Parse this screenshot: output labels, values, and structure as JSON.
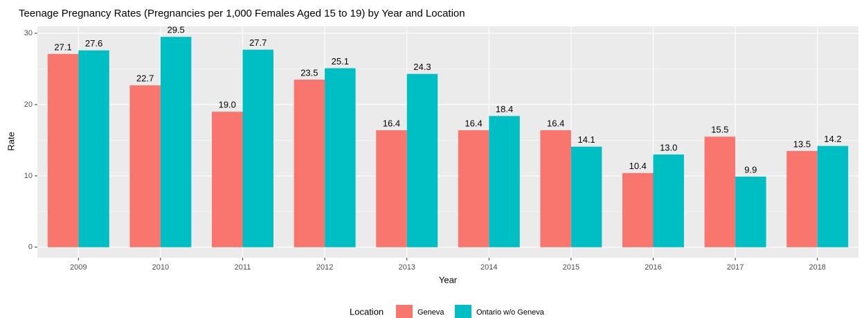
{
  "chart_data": {
    "type": "bar",
    "title": "Teenage Pregnancy Rates (Pregnancies per 1,000 Females Aged 15 to 19) by Year and Location",
    "x_label": "Year",
    "y_label": "Rate",
    "legend_title": "Location",
    "categories": [
      "2009",
      "2010",
      "2011",
      "2012",
      "2013",
      "2014",
      "2015",
      "2016",
      "2017",
      "2018"
    ],
    "series": [
      {
        "name": "Geneva",
        "color": "#f8766d",
        "values": [
          27.1,
          22.7,
          19.0,
          23.5,
          16.4,
          16.4,
          16.4,
          10.4,
          15.5,
          13.5
        ],
        "value_labels": [
          "27.1",
          "22.7",
          "19.0",
          "23.5",
          "16.4",
          "16.4",
          "16.4",
          "10.4",
          "15.5",
          "13.5"
        ]
      },
      {
        "name": "Ontario w/o Geneva",
        "color": "#00bfc4",
        "values": [
          27.6,
          29.5,
          27.7,
          25.1,
          24.3,
          18.4,
          14.1,
          13.0,
          9.9,
          14.2
        ],
        "value_labels": [
          "27.6",
          "29.5",
          "27.7",
          "25.1",
          "24.3",
          "18.4",
          "14.1",
          "13.0",
          "9.9",
          "14.2"
        ]
      }
    ],
    "ylim": [
      -1.475,
      30.975
    ],
    "yticks": [
      0,
      10,
      20,
      30
    ],
    "grid": true,
    "legend": "bottom"
  }
}
